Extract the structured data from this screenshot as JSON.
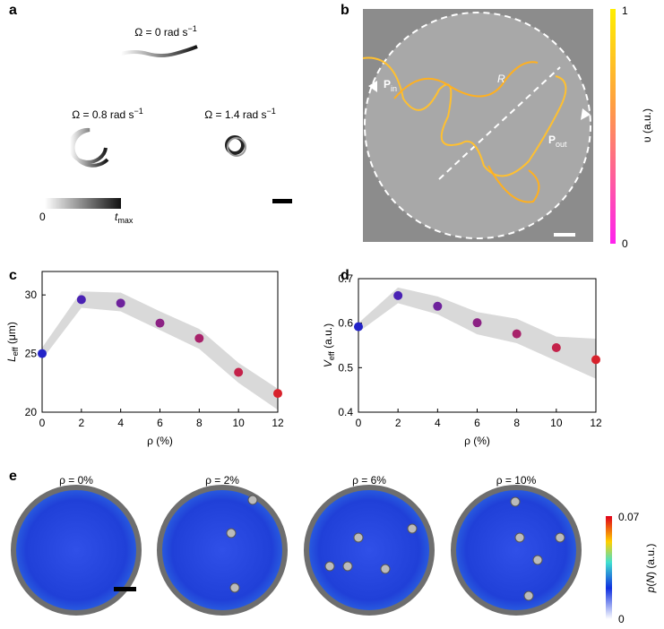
{
  "panel_labels": [
    "a",
    "b",
    "c",
    "d",
    "e"
  ],
  "panel_a": {
    "omega_labels": [
      [
        "Ω = 0 rad s",
        "−1"
      ],
      [
        "Ω = 0.8 rad s",
        "−1"
      ],
      [
        "Ω = 1.4 rad s",
        "−1"
      ]
    ],
    "colorbar_min": "0",
    "colorbar_max": [
      "t",
      "max"
    ]
  },
  "panel_b": {
    "radius_label": "R",
    "p_in": [
      "P",
      "in"
    ],
    "p_out": [
      "P",
      "out"
    ],
    "colorbar_max": "1",
    "colorbar_min": "0",
    "colorbar_label": "υ (a.u.)"
  },
  "chart_data": [
    {
      "type": "scatter",
      "xlabel": "ρ (%)",
      "ylabel": [
        "L",
        "eff",
        " (μm)"
      ],
      "x": [
        0,
        2,
        4,
        6,
        8,
        10,
        12
      ],
      "values": [
        25.0,
        29.6,
        29.3,
        27.6,
        26.3,
        23.4,
        21.6
      ],
      "band_lower": [
        24.5,
        28.9,
        28.6,
        27.0,
        25.4,
        22.5,
        20.2
      ],
      "band_upper": [
        25.5,
        30.3,
        30.2,
        28.6,
        27.1,
        24.2,
        22.0
      ],
      "colors": [
        "#2323c8",
        "#4a22b4",
        "#6e229c",
        "#8c2284",
        "#a8226a",
        "#c4224a",
        "#d8222c"
      ],
      "band_color": "#d9d9d9",
      "xlim": [
        0,
        12
      ],
      "xticks": [
        0,
        2,
        4,
        6,
        8,
        10,
        12
      ],
      "ylim": [
        20,
        32
      ],
      "yticks": [
        20,
        25,
        30
      ]
    },
    {
      "type": "scatter",
      "xlabel": "ρ (%)",
      "ylabel": [
        "V",
        "eff",
        " (a.u.)"
      ],
      "x": [
        0,
        2,
        4,
        6,
        8,
        10,
        12
      ],
      "values": [
        0.592,
        0.662,
        0.638,
        0.601,
        0.576,
        0.545,
        0.518
      ],
      "band_lower": [
        0.58,
        0.645,
        0.62,
        0.575,
        0.555,
        0.515,
        0.475
      ],
      "band_upper": [
        0.6,
        0.68,
        0.66,
        0.625,
        0.61,
        0.57,
        0.565
      ],
      "colors": [
        "#2323c8",
        "#4a22b4",
        "#6e229c",
        "#8c2284",
        "#a8226a",
        "#c4224a",
        "#d8222c"
      ],
      "band_color": "#d9d9d9",
      "xlim": [
        0,
        12
      ],
      "xticks": [
        0,
        2,
        4,
        6,
        8,
        10,
        12
      ],
      "ylim": [
        0.4,
        0.7
      ],
      "yticks": [
        0.4,
        0.5,
        0.6,
        0.7
      ]
    }
  ],
  "panel_e": {
    "titles": [
      "ρ = 0%",
      "ρ = 2%",
      "ρ = 6%",
      "ρ = 10%"
    ],
    "colorbar_max": "0.07",
    "colorbar_min": "0",
    "colorbar_label": [
      "p",
      "(",
      "N",
      ") (a.u.)"
    ]
  }
}
